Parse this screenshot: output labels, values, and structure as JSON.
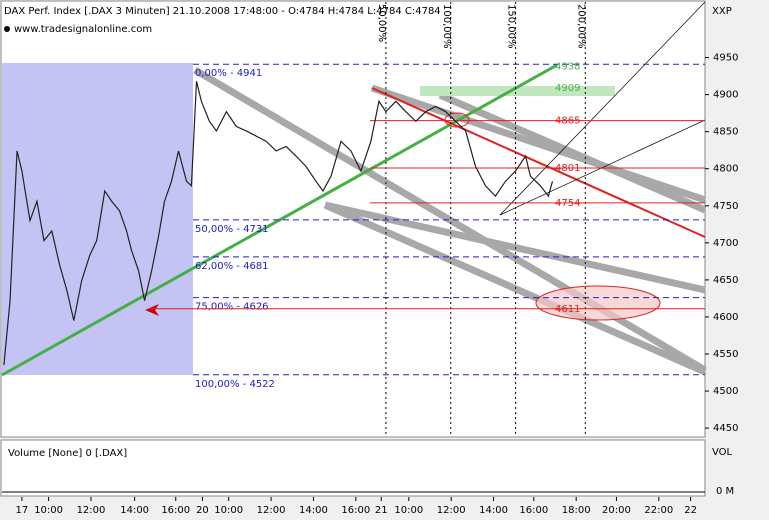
{
  "chart_data": {
    "type": "line",
    "title": "DAX Perf. Index [.DAX  3 Minuten] 21.10.2008 17:48:00 - O:4784 H:4784 L:4784 C:4784",
    "subtitle": "www.tradesignalonline.com",
    "axis_name": "XXP",
    "x": [
      0.09,
      0.38,
      0.71,
      0.94,
      1.32,
      1.65,
      1.98,
      2.35,
      2.73,
      3.06,
      3.39,
      3.76,
      4.14,
      4.47,
      4.85,
      5.18,
      5.55,
      5.88,
      6.12,
      6.45,
      6.73,
      7.06,
      7.39,
      7.67,
      8.0,
      8.33,
      8.71,
      8.94,
      9.18,
      9.41,
      9.79,
      10.12,
      10.59,
      11.06,
      11.53,
      12.0,
      12.47,
      12.94,
      13.41,
      13.88,
      14.35,
      14.82,
      15.15,
      15.53,
      16.0,
      16.47,
      16.94,
      17.41,
      17.79,
      18.12,
      18.59,
      19.06,
      19.53,
      20.0,
      20.47,
      20.94,
      21.41,
      21.88,
      22.35,
      22.82,
      23.29,
      23.76,
      24.24,
      24.71,
      24.94,
      25.41,
      25.79,
      25.98
    ],
    "series": [
      {
        "name": "DAX",
        "color": "#222222",
        "values": [
          4535,
          4622,
          4824,
          4797,
          4730,
          4756,
          4703,
          4716,
          4669,
          4636,
          4595,
          4649,
          4683,
          4703,
          4770,
          4756,
          4743,
          4716,
          4689,
          4662,
          4622,
          4662,
          4709,
          4756,
          4783,
          4824,
          4783,
          4777,
          4918,
          4891,
          4864,
          4851,
          4877,
          4857,
          4851,
          4844,
          4837,
          4824,
          4830,
          4817,
          4803,
          4783,
          4770,
          4790,
          4837,
          4824,
          4797,
          4837,
          4891,
          4877,
          4891,
          4877,
          4864,
          4877,
          4884,
          4877,
          4864,
          4851,
          4803,
          4777,
          4763,
          4783,
          4797,
          4817,
          4790,
          4777,
          4763,
          4783
        ]
      }
    ],
    "xlim": [
      0,
      33.18
    ],
    "xticks": [
      {
        "value": 0.94,
        "label": "17"
      },
      {
        "value": 2.2,
        "label": "10:00"
      },
      {
        "value": 4.2,
        "label": "12:00"
      },
      {
        "value": 6.26,
        "label": "14:00"
      },
      {
        "value": 8.2,
        "label": "16:00"
      },
      {
        "value": 9.46,
        "label": "20"
      },
      {
        "value": 10.7,
        "label": "10:00"
      },
      {
        "value": 12.7,
        "label": "12:00"
      },
      {
        "value": 14.7,
        "label": "14:00"
      },
      {
        "value": 16.7,
        "label": "16:00"
      },
      {
        "value": 17.9,
        "label": "21"
      },
      {
        "value": 19.2,
        "label": "10:00"
      },
      {
        "value": 21.2,
        "label": "12:00"
      },
      {
        "value": 23.2,
        "label": "14:00"
      },
      {
        "value": 25.1,
        "label": "16:00"
      },
      {
        "value": 27.1,
        "label": "18:00"
      },
      {
        "value": 29.0,
        "label": "20:00"
      },
      {
        "value": 31.0,
        "label": "22:00"
      },
      {
        "value": 32.5,
        "label": "22"
      }
    ],
    "ylim": [
      4438,
      5025
    ],
    "yticks": [
      4450,
      4500,
      4550,
      4600,
      4650,
      4700,
      4750,
      4800,
      4850,
      4900,
      4950
    ],
    "retracements": [
      {
        "value": 4941,
        "label": "0,00% - 4941"
      },
      {
        "value": 4731,
        "label": "50,00% - 4731"
      },
      {
        "value": 4681,
        "label": "62,00% - 4681"
      },
      {
        "value": 4626,
        "label": "75,00% - 4626"
      },
      {
        "value": 4522,
        "label": "100,00% - 4522"
      }
    ],
    "price_levels": {
      "values": [
        4938,
        4909,
        4865,
        4801,
        4754,
        4611
      ],
      "colors": [
        "#4caf50",
        "#4caf50",
        "#e02020",
        "#e02020",
        "#e02020",
        "#e02020"
      ]
    },
    "time_extensions": [
      {
        "value": 18.12,
        "label": "50,00%"
      },
      {
        "value": 21.18,
        "label": "100,00%"
      },
      {
        "value": 24.24,
        "label": "150,00%"
      },
      {
        "value": 27.53,
        "label": "200,00%"
      }
    ],
    "volume_title": "Volume [None] 0 [.DAX]",
    "volume_axis_name": "VOL",
    "volume_tick": "0 M"
  }
}
